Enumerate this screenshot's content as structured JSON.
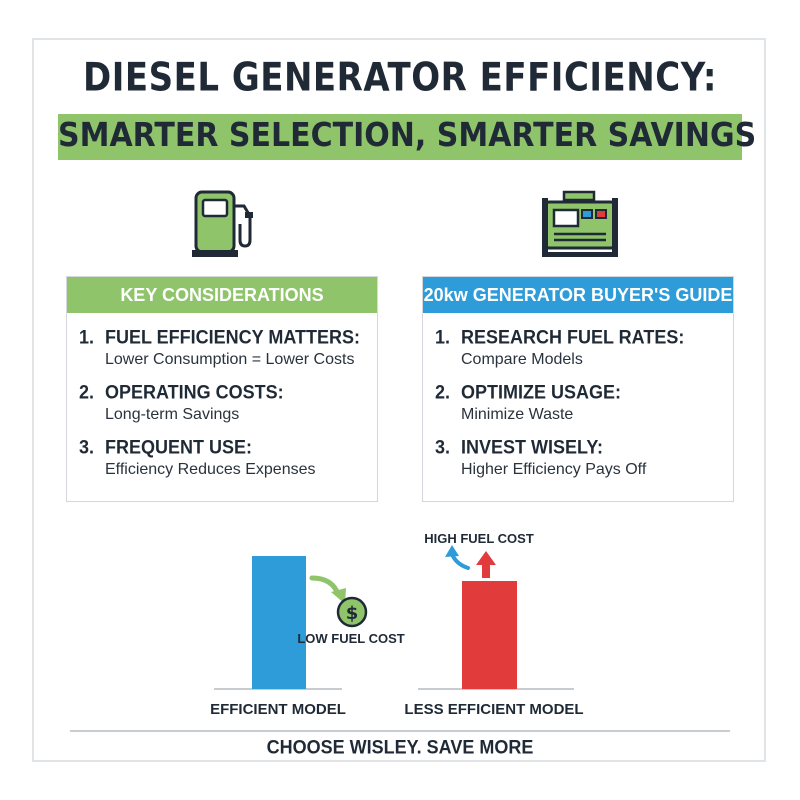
{
  "title": "DIESEL GENERATOR EFFICIENCY:",
  "subtitle": "SMARTER SELECTION, SMARTER SAVINGS",
  "icons": {
    "left": "fuel-pump-icon",
    "right": "generator-icon",
    "coin": "dollar-coin-icon"
  },
  "left_panel": {
    "header": "KEY CONSIDERATIONS",
    "items": [
      {
        "num": "1.",
        "title": "FUEL EFFICIENCY MATTERS:",
        "desc": "Lower Consumption = Lower Costs"
      },
      {
        "num": "2.",
        "title": "OPERATING COSTS:",
        "desc": "Long-term Savings"
      },
      {
        "num": "3.",
        "title": "FREQUENT USE:",
        "desc": "Efficiency Reduces Expenses"
      }
    ]
  },
  "right_panel": {
    "header": "20kw GENERATOR BUYER'S GUIDE",
    "items": [
      {
        "num": "1.",
        "title": "RESEARCH FUEL RATES:",
        "desc": "Compare Models"
      },
      {
        "num": "2.",
        "title": "OPTIMIZE USAGE:",
        "desc": "Minimize Waste"
      },
      {
        "num": "3.",
        "title": "INVEST WISELY:",
        "desc": "Higher Efficiency Pays Off"
      }
    ]
  },
  "comparison": {
    "efficient_label": "EFFICIENT MODEL",
    "less_efficient_label": "LESS EFFICIENT MODEL",
    "low_cost_label": "LOW FUEL COST",
    "high_cost_label": "HIGH FUEL COST"
  },
  "footer": "CHOOSE WISLEY. SAVE MORE",
  "colors": {
    "green": "#8fc46a",
    "blue": "#2d9cd8",
    "red": "#e23b3b",
    "dark": "#1f2a36"
  }
}
